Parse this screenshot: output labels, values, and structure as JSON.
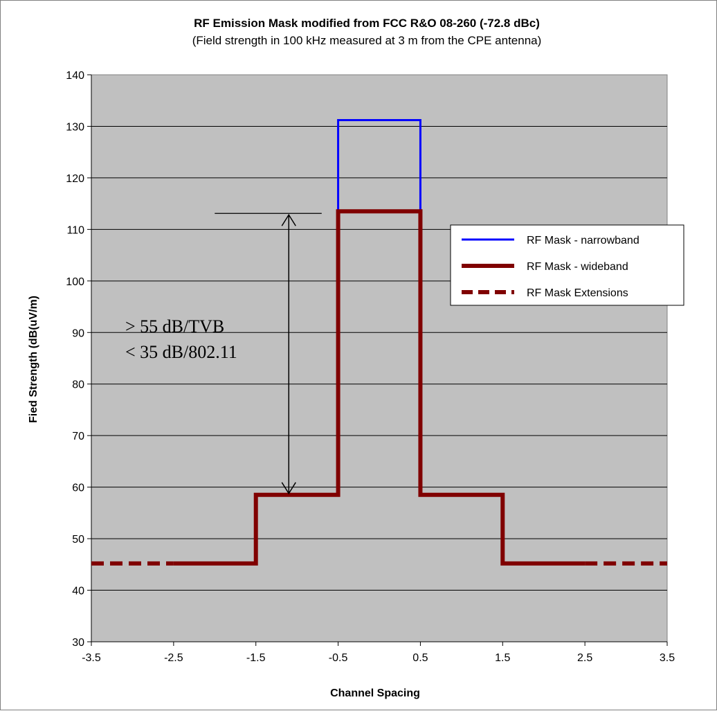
{
  "chart_data": {
    "type": "line",
    "title": "RF Emission Mask modified from FCC R&O 08-260 (-72.8 dBc)",
    "subtitle": "(Field strength in 100 kHz measured at 3 m from the CPE antenna)",
    "xlabel": "Channel Spacing",
    "ylabel": "Fied Strength (dB(uV/m)",
    "xlim": [
      -3.5,
      3.5
    ],
    "ylim": [
      30,
      140
    ],
    "x_ticks": [
      -3.5,
      -2.5,
      -1.5,
      -0.5,
      0.5,
      1.5,
      2.5,
      3.5
    ],
    "y_ticks": [
      30,
      40,
      50,
      60,
      70,
      80,
      90,
      100,
      110,
      120,
      130,
      140
    ],
    "grid": "horizontal",
    "plot_background": "#c0c0c0",
    "legend_position": "right",
    "series": [
      {
        "name": "RF Mask - narrowband",
        "color": "#0000ff",
        "style": "solid",
        "points": [
          [
            -0.5,
            113.5
          ],
          [
            -0.5,
            131.2
          ],
          [
            0.5,
            131.2
          ],
          [
            0.5,
            113.5
          ]
        ]
      },
      {
        "name": "RF Mask - wideband",
        "color": "#800000",
        "style": "solid",
        "points": [
          [
            -2.5,
            45.2
          ],
          [
            -1.5,
            45.2
          ],
          [
            -1.5,
            58.5
          ],
          [
            -0.5,
            58.5
          ],
          [
            -0.5,
            113.5
          ],
          [
            0.5,
            113.5
          ],
          [
            0.5,
            58.5
          ],
          [
            1.5,
            58.5
          ],
          [
            1.5,
            45.2
          ],
          [
            2.5,
            45.2
          ]
        ]
      },
      {
        "name": "RF Mask Extensions",
        "color": "#800000",
        "style": "dashed",
        "segments": [
          [
            [
              -3.5,
              45.2
            ],
            [
              -2.5,
              45.2
            ]
          ],
          [
            [
              2.5,
              45.2
            ],
            [
              3.5,
              45.2
            ]
          ]
        ]
      }
    ],
    "annotations": {
      "line1": "> 55 dB/TVB",
      "line2": "< 35 dB/802.11",
      "arrow_x": -1.1,
      "arrow_from": 113.1,
      "arrow_to": 58.5
    }
  }
}
